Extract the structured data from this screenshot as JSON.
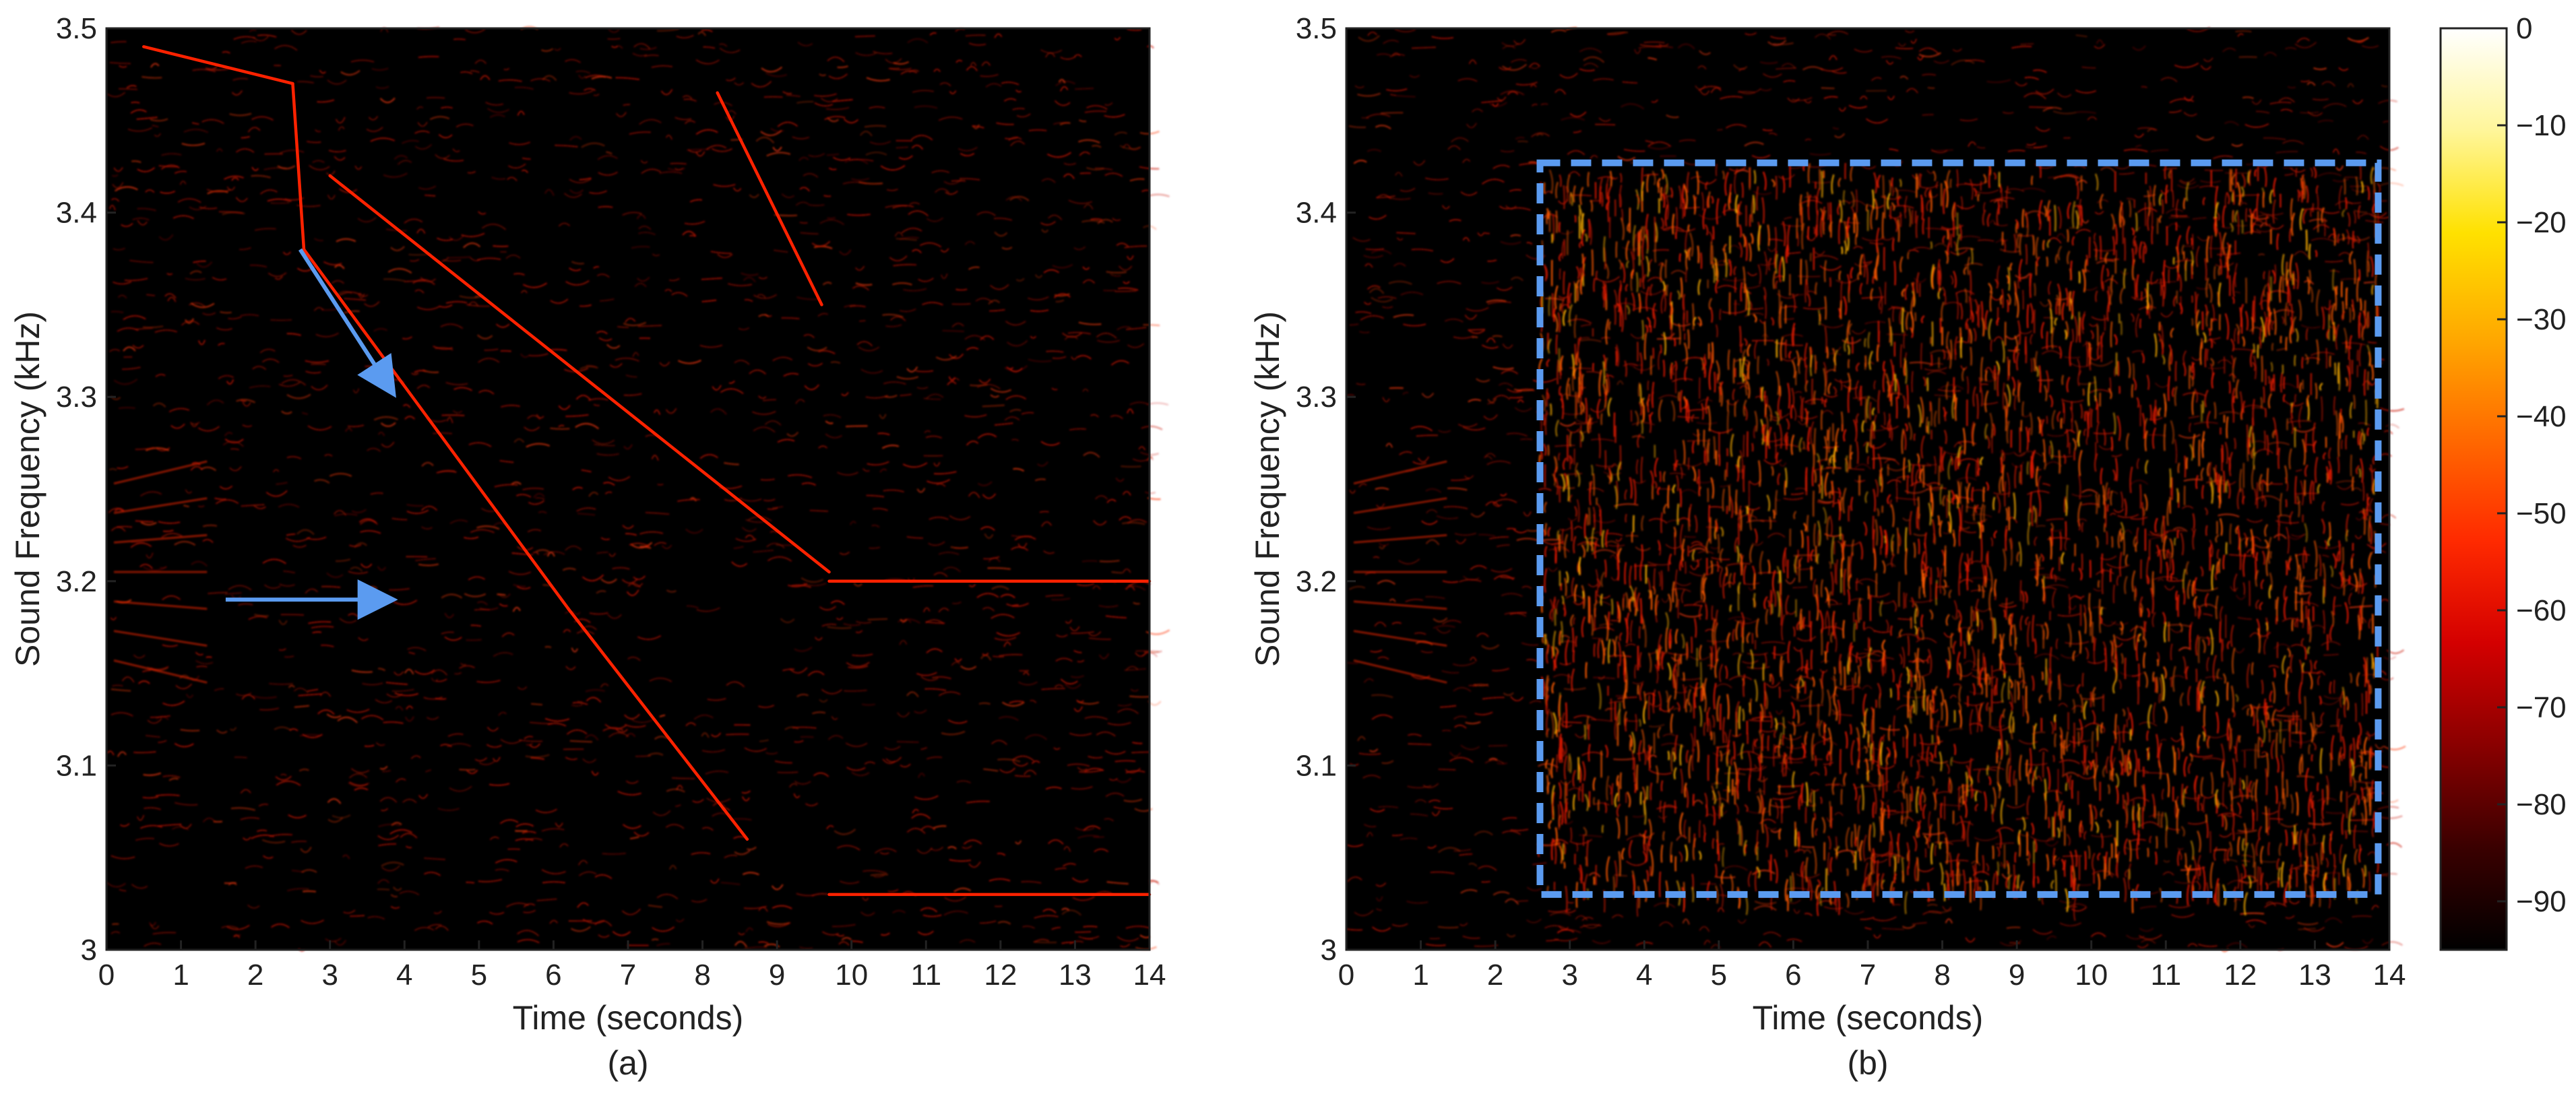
{
  "chart_data": [
    {
      "type": "heatmap",
      "panel_label": "(a)",
      "xlabel": "Time (seconds)",
      "ylabel": "Sound Frequency (kHz)",
      "xlim": [
        0,
        14
      ],
      "ylim": [
        3.0,
        3.5
      ],
      "x_ticks": [
        0,
        1,
        2,
        3,
        4,
        5,
        6,
        7,
        8,
        9,
        10,
        11,
        12,
        13,
        14
      ],
      "y_ticks": [
        3,
        3.1,
        3.2,
        3.3,
        3.4,
        3.5
      ],
      "y_tick_labels": [
        "3",
        "3.1",
        "3.2",
        "3.3",
        "3.4",
        "3.5"
      ],
      "grid": false,
      "colormap": "hot",
      "tracks": [
        {
          "from": [
            0.5,
            3.49
          ],
          "to": [
            2.5,
            3.47
          ]
        },
        {
          "from": [
            2.5,
            3.47
          ],
          "to": [
            2.65,
            3.38
          ]
        },
        {
          "from": [
            2.65,
            3.38
          ],
          "to": [
            6.2,
            3.185
          ]
        },
        {
          "from": [
            6.2,
            3.185
          ],
          "to": [
            8.6,
            3.06
          ]
        },
        {
          "from": [
            8.2,
            3.465
          ],
          "to": [
            9.6,
            3.35
          ]
        },
        {
          "from": [
            3.0,
            3.42
          ],
          "to": [
            9.7,
            3.205
          ]
        },
        {
          "from": [
            9.7,
            3.2
          ],
          "to": [
            14.0,
            3.2
          ]
        },
        {
          "from": [
            9.7,
            3.03
          ],
          "to": [
            14.0,
            3.03
          ]
        }
      ],
      "annotations": [
        {
          "type": "arrow",
          "color": "#5b9bf0",
          "from": [
            2.6,
            3.38
          ],
          "to": [
            3.8,
            3.305
          ]
        },
        {
          "type": "arrow",
          "color": "#5b9bf0",
          "from": [
            1.6,
            3.19
          ],
          "to": [
            3.75,
            3.19
          ]
        }
      ]
    },
    {
      "type": "heatmap",
      "panel_label": "(b)",
      "xlabel": "Time (seconds)",
      "ylabel": "Sound Frequency (kHz)",
      "xlim": [
        0,
        14
      ],
      "ylim": [
        3.0,
        3.5
      ],
      "x_ticks": [
        0,
        1,
        2,
        3,
        4,
        5,
        6,
        7,
        8,
        9,
        10,
        11,
        12,
        13,
        14
      ],
      "y_ticks": [
        3,
        3.1,
        3.2,
        3.3,
        3.4,
        3.5
      ],
      "y_tick_labels": [
        "3",
        "3.1",
        "3.2",
        "3.3",
        "3.4",
        "3.5"
      ],
      "grid": false,
      "colormap": "hot",
      "noise_region": {
        "x": [
          2.6,
          13.85
        ],
        "y": [
          3.03,
          3.427
        ]
      },
      "annotations": [
        {
          "type": "dashed-box",
          "color": "#5b9bf0",
          "x": [
            2.6,
            13.85
          ],
          "y": [
            3.03,
            3.427
          ]
        }
      ]
    }
  ],
  "colorbar": {
    "ticks": [
      0,
      -10,
      -20,
      -30,
      -40,
      -50,
      -60,
      -70,
      -80,
      -90
    ],
    "tick_labels": [
      "0",
      "−10",
      "−20",
      "−30",
      "−40",
      "−50",
      "−60",
      "−70",
      "−80",
      "−90"
    ],
    "range": [
      -95,
      0
    ],
    "colors": [
      "#000000",
      "#3a0000",
      "#8a0000",
      "#d40000",
      "#ff2a00",
      "#ff6a00",
      "#ffaa00",
      "#ffe100",
      "#fff69a",
      "#ffffff"
    ]
  }
}
